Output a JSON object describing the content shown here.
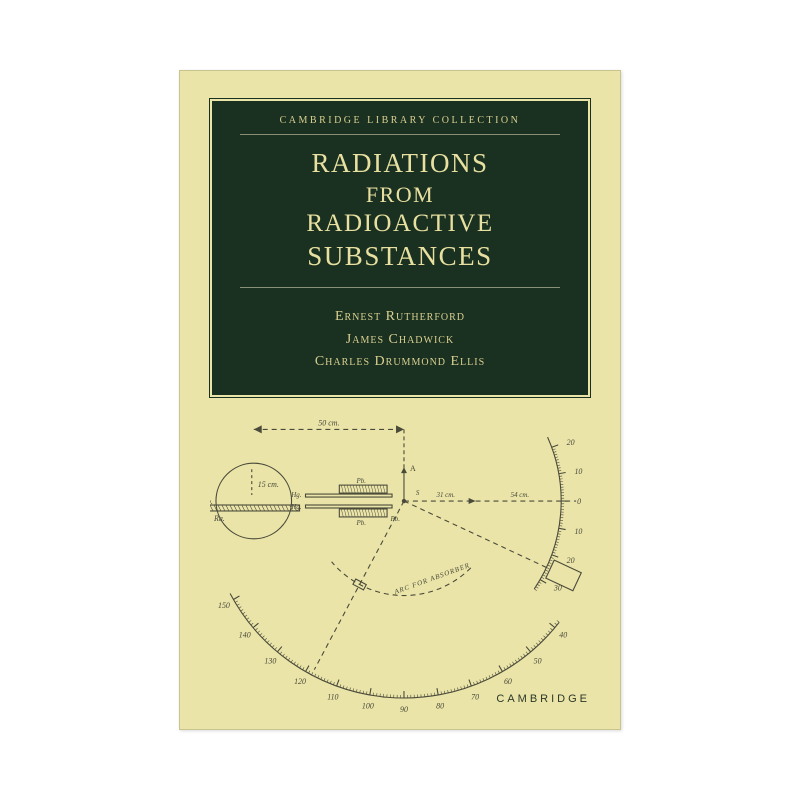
{
  "cover": {
    "background_color": "#eae4a8",
    "panel_color": "#1a3020",
    "text_color": "#e8e0a0",
    "diagram_stroke": "#4a4a3a",
    "collection_label": "CAMBRIDGE LIBRARY COLLECTION",
    "title_lines": [
      "RADIATIONS",
      "FROM",
      "RADIOACTIVE",
      "SUBSTANCES"
    ],
    "authors": [
      "Ernest Rutherford",
      "James Chadwick",
      "Charles Drummond Ellis"
    ],
    "publisher": "CAMBRIDGE"
  },
  "diagram": {
    "type": "schematic",
    "stroke_color": "#4a4a3a",
    "stroke_width": 1.1,
    "font_family": "serif",
    "font_size_small": 8,
    "font_size_tiny": 7,
    "top_measure": "50 cm.",
    "circle_label": "15 cm.",
    "left_label": "Pb.",
    "ra_label": "Ra.",
    "hg_labels": [
      "Hg.",
      "Hg."
    ],
    "pb_labels": [
      "Pb.",
      "Pb.",
      "Pb."
    ],
    "a_label": "A",
    "s_label": "S",
    "mid_measure": "31 cm.",
    "right_measure": "54 cm.",
    "arc_label": "ARC FOR ABSORBER",
    "scale_right": [
      {
        "v": 20,
        "angle": -20
      },
      {
        "v": 10,
        "angle": -10
      },
      {
        "v": 0,
        "angle": 0
      },
      {
        "v": 10,
        "angle": 10
      },
      {
        "v": 20,
        "angle": 20
      },
      {
        "v": 30,
        "angle": 30
      }
    ],
    "scale_outer": [
      {
        "v": 150,
        "angle": 150
      },
      {
        "v": 140,
        "angle": 140
      },
      {
        "v": 130,
        "angle": 130
      },
      {
        "v": 120,
        "angle": 120
      },
      {
        "v": 110,
        "angle": 110
      },
      {
        "v": 100,
        "angle": 100
      },
      {
        "v": 90,
        "angle": 90
      },
      {
        "v": 80,
        "angle": 80
      },
      {
        "v": 70,
        "angle": 70
      },
      {
        "v": 60,
        "angle": 60
      },
      {
        "v": 50,
        "angle": 50
      },
      {
        "v": 40,
        "angle": 40
      }
    ]
  }
}
